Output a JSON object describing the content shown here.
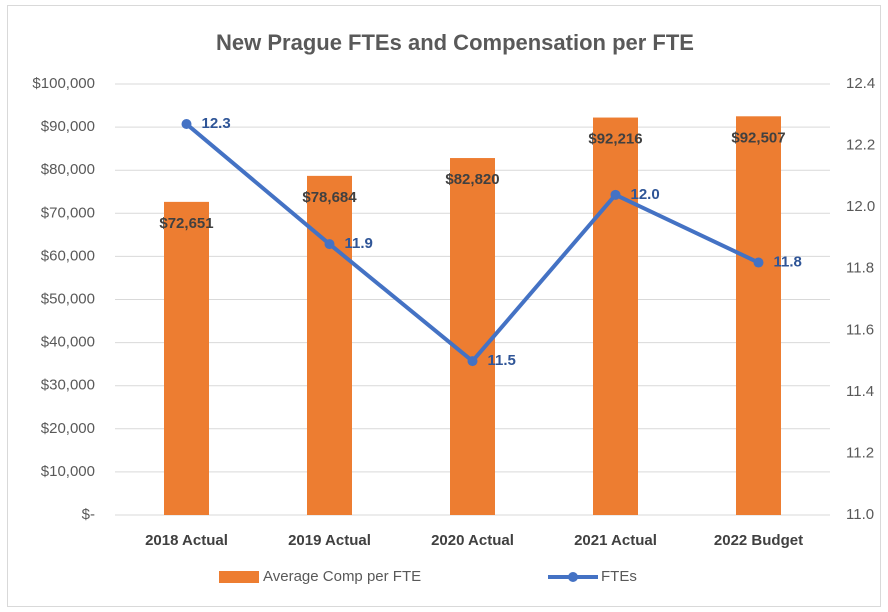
{
  "chart_data": {
    "type": "bar",
    "title": "New Prague FTEs and Compensation per FTE",
    "categories": [
      "2018 Actual",
      "2019 Actual",
      "2020 Actual",
      "2021 Actual",
      "2022 Budget"
    ],
    "series": [
      {
        "name": "Average Comp per FTE",
        "type": "bar",
        "color": "#ed7d31",
        "values": [
          72651,
          78684,
          82820,
          92216,
          92507
        ],
        "value_labels": [
          "$72,651",
          "$78,684",
          "$82,820",
          "$92,216",
          "$92,507"
        ]
      },
      {
        "name": "FTEs",
        "type": "line",
        "axis": "y2",
        "color": "#4472c4",
        "values": [
          12.27,
          11.88,
          11.5,
          12.04,
          11.82
        ],
        "value_labels": [
          "12.3",
          "11.9",
          "11.5",
          "12.0",
          "11.8"
        ]
      }
    ],
    "ylim": [
      0,
      100000
    ],
    "yticks": [
      {
        "value": 0,
        "label": "$-"
      },
      {
        "value": 10000,
        "label": "$10,000"
      },
      {
        "value": 20000,
        "label": "$20,000"
      },
      {
        "value": 30000,
        "label": "$30,000"
      },
      {
        "value": 40000,
        "label": "$40,000"
      },
      {
        "value": 50000,
        "label": "$50,000"
      },
      {
        "value": 60000,
        "label": "$60,000"
      },
      {
        "value": 70000,
        "label": "$70,000"
      },
      {
        "value": 80000,
        "label": "$80,000"
      },
      {
        "value": 90000,
        "label": "$90,000"
      },
      {
        "value": 100000,
        "label": "$100,000"
      }
    ],
    "y2lim": [
      11,
      12.4
    ],
    "y2ticks": [
      {
        "value": 11,
        "label": "11.0"
      },
      11.2,
      11.4,
      11.6,
      11.8,
      {
        "value": 12,
        "label": "12.0"
      },
      12.2,
      12.4
    ],
    "grid": true,
    "legend": "bottom"
  }
}
